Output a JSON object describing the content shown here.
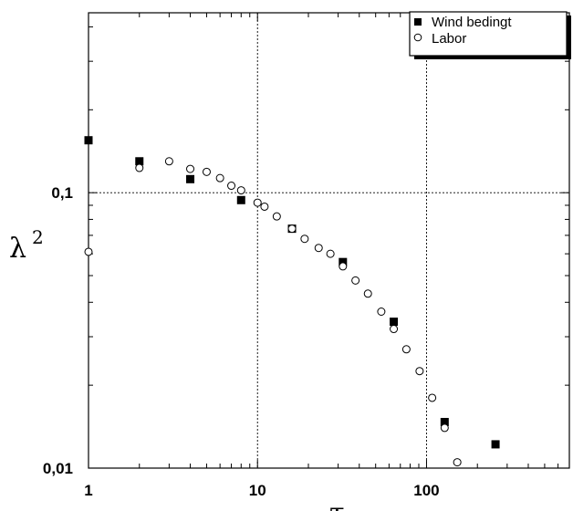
{
  "chart_data": {
    "type": "scatter",
    "title": "",
    "xlabel": "τ",
    "ylabel": "λ",
    "ylabel_superscript": "2",
    "x_scale": "log",
    "y_scale": "log",
    "xlim": [
      1,
      700
    ],
    "ylim": [
      0.01,
      0.45
    ],
    "x_tick_labels": [
      {
        "value": 1,
        "label": "1"
      },
      {
        "value": 10,
        "label": "10"
      },
      {
        "value": 100,
        "label": "100"
      }
    ],
    "y_tick_labels": [
      {
        "value": 0.01,
        "label": "0,01"
      },
      {
        "value": 0.1,
        "label": "0,1"
      }
    ],
    "reference_lines": {
      "x": [
        10,
        100
      ],
      "y": [
        0.1
      ]
    },
    "legend": {
      "placement": "top-right"
    },
    "series": [
      {
        "name": "Wind bedingt",
        "marker": "filled-square",
        "x": [
          1,
          2,
          4,
          8,
          16,
          32,
          64,
          128,
          256
        ],
        "y": [
          0.155,
          0.13,
          0.112,
          0.094,
          0.074,
          0.056,
          0.034,
          0.0147,
          0.0122
        ]
      },
      {
        "name": "Labor",
        "marker": "open-circle",
        "x": [
          1,
          2,
          3,
          4,
          5,
          6,
          7,
          8,
          10,
          11,
          13,
          16,
          19,
          23,
          27,
          32,
          38,
          45,
          54,
          64,
          76,
          91,
          108,
          128,
          152
        ],
        "y": [
          0.061,
          0.123,
          0.13,
          0.122,
          0.119,
          0.113,
          0.106,
          0.102,
          0.092,
          0.089,
          0.082,
          0.074,
          0.068,
          0.063,
          0.06,
          0.054,
          0.048,
          0.043,
          0.037,
          0.032,
          0.027,
          0.0225,
          0.018,
          0.014,
          0.0105
        ]
      }
    ]
  }
}
